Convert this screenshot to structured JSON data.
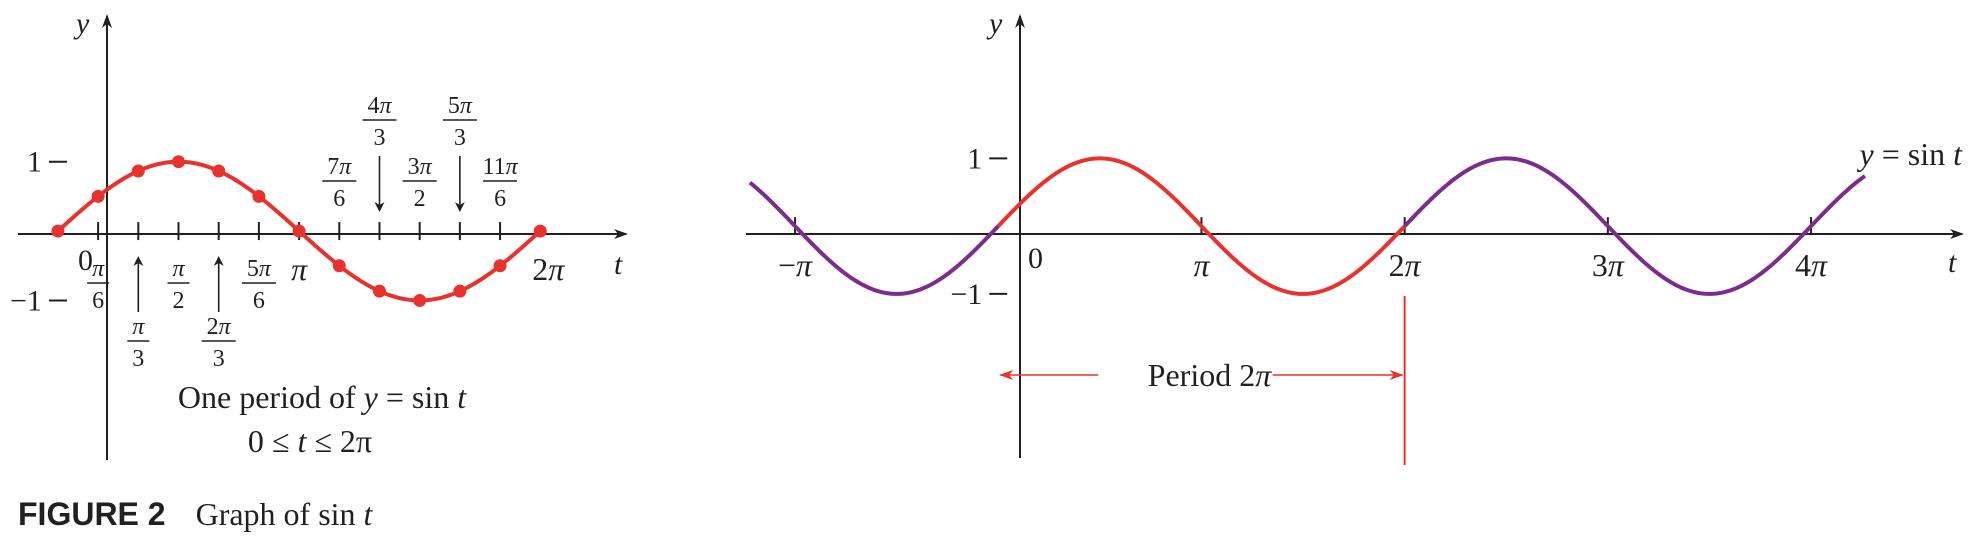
{
  "colors": {
    "sine_main": "#e8322d",
    "sine_extension": "#7b2c8c",
    "axis": "#231f20"
  },
  "caption": {
    "label": "FIGURE 2",
    "text": "Graph of sin",
    "var": "t"
  },
  "chart_data": [
    {
      "type": "line",
      "panel": "left",
      "function": "y = sin t",
      "xlabel": "t",
      "ylabel": "y",
      "xlim": [
        -0.52,
        7.4
      ],
      "ylim": [
        -3.3,
        3.1
      ],
      "yticks": [
        {
          "value": 1,
          "label": "1"
        },
        {
          "value": -1,
          "label": "−1"
        }
      ],
      "origin_label": "0",
      "x_tick_values": [
        0.5236,
        1.0472,
        1.5708,
        2.0944,
        2.618,
        3.1416,
        3.6652,
        4.1888,
        4.7124,
        5.236,
        5.7596
      ],
      "inline_tick_labels": [
        {
          "x": 3.1416,
          "label": "π"
        },
        {
          "x": 6.2832,
          "label": "2π"
        }
      ],
      "fraction_labels": [
        {
          "x": 0.5236,
          "num": "π",
          "den": "6",
          "pos": "below"
        },
        {
          "x": 1.0472,
          "num": "π",
          "den": "3",
          "pos": "below-arrow"
        },
        {
          "x": 1.5708,
          "num": "π",
          "den": "2",
          "pos": "below"
        },
        {
          "x": 2.0944,
          "num": "2π",
          "den": "3",
          "pos": "below-arrow"
        },
        {
          "x": 2.618,
          "num": "5π",
          "den": "6",
          "pos": "below"
        },
        {
          "x": 3.6652,
          "num": "7π",
          "den": "6",
          "pos": "above"
        },
        {
          "x": 4.1888,
          "num": "4π",
          "den": "3",
          "pos": "above-arrow"
        },
        {
          "x": 4.7124,
          "num": "3π",
          "den": "2",
          "pos": "above"
        },
        {
          "x": 5.236,
          "num": "5π",
          "den": "3",
          "pos": "above-arrow"
        },
        {
          "x": 5.7596,
          "num": "11π",
          "den": "6",
          "pos": "above"
        }
      ],
      "series": [
        {
          "range": [
            0,
            6.2832
          ],
          "points": [
            {
              "x": 0,
              "y": 0
            },
            {
              "x": 0.5236,
              "y": 0.5
            },
            {
              "x": 1.0472,
              "y": 0.866
            },
            {
              "x": 1.5708,
              "y": 1
            },
            {
              "x": 2.0944,
              "y": 0.866
            },
            {
              "x": 2.618,
              "y": 0.5
            },
            {
              "x": 3.1416,
              "y": 0
            },
            {
              "x": 3.6652,
              "y": -0.5
            },
            {
              "x": 4.1888,
              "y": -0.866
            },
            {
              "x": 4.7124,
              "y": -1
            },
            {
              "x": 5.236,
              "y": -0.866
            },
            {
              "x": 5.7596,
              "y": -0.5
            },
            {
              "x": 6.2832,
              "y": 0
            }
          ]
        }
      ],
      "annotation": {
        "line1": "One period of",
        "line1_var": "y",
        "line1_eq": " = sin ",
        "line1_t": "t",
        "line2": "0 ≤ ",
        "line2_t": "t",
        "line2_rest": " ≤ 2π"
      }
    },
    {
      "type": "line",
      "panel": "right",
      "function": "y = sin t",
      "xlabel": "t",
      "ylabel": "y",
      "xlim": [
        -3.9,
        14.9
      ],
      "ylim": [
        -3.45,
        3.1
      ],
      "yticks": [
        {
          "value": 1,
          "label": "1"
        },
        {
          "value": -1,
          "label": "−1"
        }
      ],
      "origin_label": "0",
      "xticks": [
        {
          "value": -3.1416,
          "label": "−π"
        },
        {
          "value": 3.1416,
          "label": "π"
        },
        {
          "value": 6.2832,
          "label": "2π"
        },
        {
          "value": 9.4248,
          "label": "3π"
        },
        {
          "value": 12.5664,
          "label": "4π"
        }
      ],
      "series": [
        {
          "name": "main",
          "range": [
            0,
            6.2832
          ],
          "color": "sine_main"
        },
        {
          "name": "ext-left",
          "range": [
            -3.84,
            0
          ],
          "color": "sine_extension"
        },
        {
          "name": "ext-right",
          "range": [
            6.2832,
            13.4
          ],
          "color": "sine_extension"
        }
      ],
      "curve_label": {
        "y": "y",
        "eq": " = sin ",
        "t": "t"
      },
      "period_annotation": {
        "text": "Period 2π",
        "from": 0,
        "to": 6.2832
      }
    }
  ]
}
